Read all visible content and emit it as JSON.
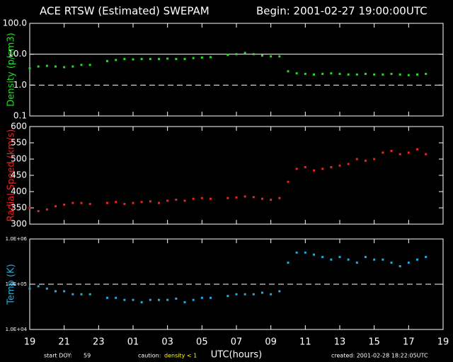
{
  "header": {
    "title": "ACE RTSW (Estimated) SWEPAM",
    "begin": "Begin: 2001-02-27 19:00:00UTC"
  },
  "footer": {
    "doy_label": "start DOY:",
    "doy": "59",
    "caution_label": "caution:",
    "caution": "density < 1",
    "created": "created: 2001-02-28 18:22:05UTC"
  },
  "chart_data": [
    {
      "type": "scatter",
      "ylabel": "Density (p/cm3)",
      "color": "#22dd22",
      "log": true,
      "ylim": [
        0.1,
        100
      ],
      "yticks": [
        {
          "value": 0.1,
          "label": "0.1"
        },
        {
          "value": 1,
          "label": "1.0"
        },
        {
          "value": 10,
          "label": "10.0"
        },
        {
          "value": 100,
          "label": "100.0"
        }
      ],
      "reference_lines": [
        {
          "value": 10,
          "style": "solid"
        },
        {
          "value": 1,
          "style": "dashed"
        }
      ],
      "xlim": [
        0,
        24
      ],
      "x": [
        0,
        0.5,
        1,
        1.5,
        2,
        2.5,
        3,
        3.5,
        4,
        4.5,
        5,
        5.5,
        6,
        6.5,
        7,
        7.5,
        8,
        8.5,
        9,
        9.5,
        10,
        10.5,
        11,
        11.5,
        12,
        12.5,
        13,
        13.5,
        14,
        14.5,
        15,
        15.5,
        16,
        16.5,
        17,
        17.5,
        18,
        18.5,
        19,
        19.5,
        20,
        20.5,
        21,
        21.5,
        22,
        22.5,
        23
      ],
      "values": [
        3.5,
        4,
        4.2,
        4,
        3.8,
        4,
        4.5,
        4.5,
        null,
        6,
        6.5,
        7,
        6.8,
        7,
        7,
        7,
        7.2,
        7,
        7,
        7.5,
        7.8,
        8,
        null,
        9.5,
        10,
        11,
        10,
        9,
        8.5,
        8.5,
        2.8,
        2.4,
        2.3,
        2.2,
        2.3,
        2.4,
        2.3,
        2.2,
        2.2,
        2.3,
        2.2,
        2.2,
        2.3,
        2.2,
        2.1,
        2.2,
        2.3
      ]
    },
    {
      "type": "scatter",
      "ylabel": "Radial Speed (km/s)",
      "color": "#ee2222",
      "log": false,
      "ylim": [
        300,
        600
      ],
      "yticks": [
        300,
        350,
        400,
        450,
        500,
        550,
        600
      ],
      "xlim": [
        0,
        24
      ],
      "x": [
        0,
        0.5,
        1,
        1.5,
        2,
        2.5,
        3,
        3.5,
        4,
        4.5,
        5,
        5.5,
        6,
        6.5,
        7,
        7.5,
        8,
        8.5,
        9,
        9.5,
        10,
        10.5,
        11,
        11.5,
        12,
        12.5,
        13,
        13.5,
        14,
        14.5,
        15,
        15.5,
        16,
        16.5,
        17,
        17.5,
        18,
        18.5,
        19,
        19.5,
        20,
        20.5,
        21,
        21.5,
        22,
        22.5,
        23
      ],
      "values": [
        350,
        340,
        345,
        355,
        360,
        365,
        365,
        362,
        null,
        365,
        368,
        362,
        365,
        368,
        370,
        365,
        372,
        375,
        372,
        378,
        380,
        378,
        null,
        380,
        382,
        385,
        383,
        378,
        375,
        380,
        430,
        470,
        475,
        465,
        470,
        475,
        480,
        485,
        500,
        495,
        500,
        520,
        525,
        515,
        520,
        530,
        515
      ]
    },
    {
      "type": "scatter",
      "ylabel": "Temp (K)",
      "color": "#22aadd",
      "log": true,
      "ylim": [
        10000,
        1000000
      ],
      "yticks": [
        {
          "value": 10000,
          "label": "1.0E+04"
        },
        {
          "value": 100000,
          "label": "1.0E+05"
        },
        {
          "value": 1000000,
          "label": "1.0E+06"
        }
      ],
      "reference_lines": [
        {
          "value": 100000,
          "style": "dashed"
        }
      ],
      "xlim": [
        0,
        24
      ],
      "xlabel": "UTC(hours)",
      "xticks": [
        {
          "value": 0,
          "label": "19"
        },
        {
          "value": 2,
          "label": "21"
        },
        {
          "value": 4,
          "label": "23"
        },
        {
          "value": 6,
          "label": "01"
        },
        {
          "value": 8,
          "label": "03"
        },
        {
          "value": 10,
          "label": "05"
        },
        {
          "value": 12,
          "label": "07"
        },
        {
          "value": 14,
          "label": "09"
        },
        {
          "value": 16,
          "label": "11"
        },
        {
          "value": 18,
          "label": "13"
        },
        {
          "value": 20,
          "label": "15"
        },
        {
          "value": 22,
          "label": "17"
        },
        {
          "value": 24,
          "label": "19"
        }
      ],
      "x": [
        0,
        0.5,
        1,
        1.5,
        2,
        2.5,
        3,
        3.5,
        4,
        4.5,
        5,
        5.5,
        6,
        6.5,
        7,
        7.5,
        8,
        8.5,
        9,
        9.5,
        10,
        10.5,
        11,
        11.5,
        12,
        12.5,
        13,
        13.5,
        14,
        14.5,
        15,
        15.5,
        16,
        16.5,
        17,
        17.5,
        18,
        18.5,
        19,
        19.5,
        20,
        20.5,
        21,
        21.5,
        22,
        22.5,
        23
      ],
      "values": [
        80000,
        90000,
        80000,
        70000,
        70000,
        60000,
        60000,
        60000,
        null,
        50000,
        50000,
        45000,
        45000,
        40000,
        45000,
        45000,
        45000,
        48000,
        40000,
        45000,
        50000,
        50000,
        null,
        55000,
        60000,
        60000,
        60000,
        65000,
        60000,
        70000,
        300000,
        500000,
        500000,
        450000,
        400000,
        350000,
        400000,
        350000,
        300000,
        400000,
        350000,
        350000,
        300000,
        250000,
        300000,
        350000,
        400000
      ]
    }
  ]
}
